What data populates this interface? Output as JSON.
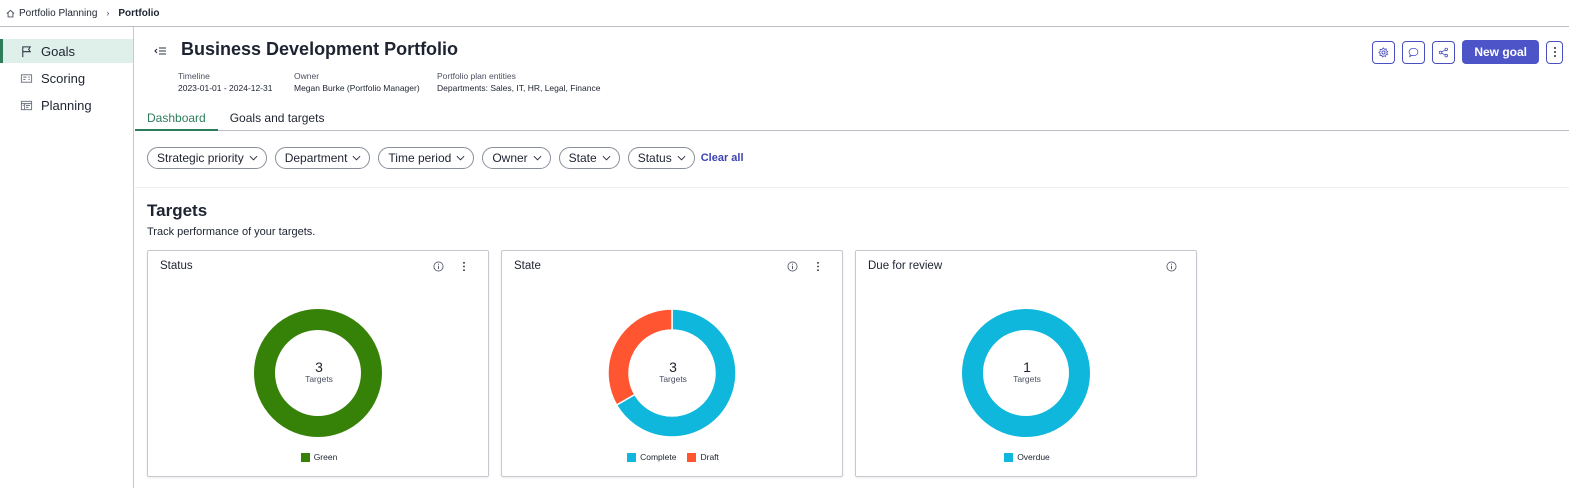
{
  "breadcrumb": {
    "root": "Portfolio Planning",
    "current": "Portfolio"
  },
  "sidebar": {
    "items": [
      {
        "label": "Goals"
      },
      {
        "label": "Scoring"
      },
      {
        "label": "Planning"
      }
    ]
  },
  "header": {
    "title": "Business Development Portfolio",
    "timeline_label": "Timeline",
    "timeline_value": "2023-01-01 - 2024-12-31",
    "owner_label": "Owner",
    "owner_value": "Megan Burke (Portfolio Manager)",
    "entities_label": "Portfolio plan entities",
    "entities_value": "Departments: Sales, IT, HR, Legal, Finance",
    "new_goal_label": "New goal"
  },
  "tabs": [
    {
      "label": "Dashboard"
    },
    {
      "label": "Goals and targets"
    }
  ],
  "filters": {
    "items": [
      {
        "label": "Strategic priority"
      },
      {
        "label": "Department"
      },
      {
        "label": "Time period"
      },
      {
        "label": "Owner"
      },
      {
        "label": "State"
      },
      {
        "label": "Status"
      }
    ],
    "clear_label": "Clear all"
  },
  "section": {
    "title": "Targets",
    "subtitle": "Track performance of your targets."
  },
  "cards": [
    {
      "title": "Status",
      "center_value": "3",
      "center_label": "Targets",
      "segments": [
        {
          "label": "Green",
          "value": 3,
          "color": "#368208"
        }
      ]
    },
    {
      "title": "State",
      "center_value": "3",
      "center_label": "Targets",
      "segments": [
        {
          "label": "Complete",
          "value": 2,
          "color": "#0eb7db"
        },
        {
          "label": "Draft",
          "value": 1,
          "color": "#ff5530"
        }
      ]
    },
    {
      "title": "Due for review",
      "center_value": "1",
      "center_label": "Targets",
      "segments": [
        {
          "label": "Overdue",
          "value": 1,
          "color": "#0eb7db"
        }
      ]
    }
  ],
  "colors": {
    "accent": "#2d7d5a",
    "primary_button": "#4c54c7",
    "link": "#3d43b5"
  }
}
